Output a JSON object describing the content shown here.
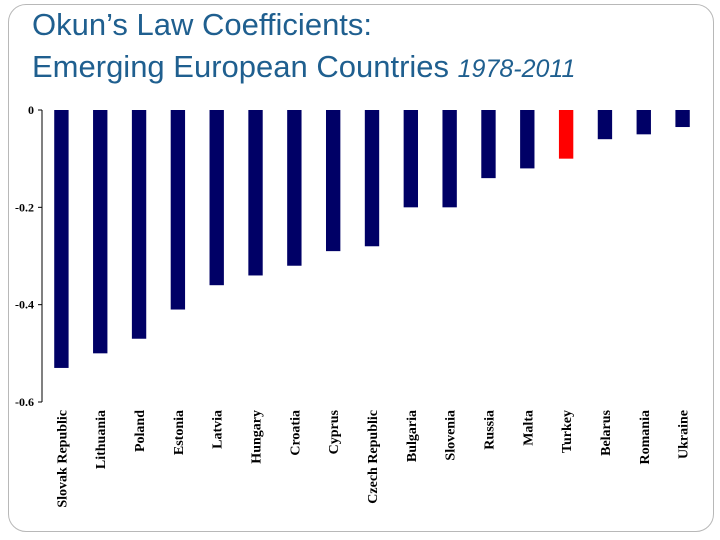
{
  "chart_data": {
    "type": "bar",
    "title": "Okun’s Law Coefficients:",
    "subtitle_main": "Emerging European Countries",
    "subtitle_years": "1978-2011",
    "xlabel": "",
    "ylabel": "",
    "ylim": [
      -0.6,
      0
    ],
    "yticks": [
      "0",
      "-0.2",
      "-0.4",
      "-0.6"
    ],
    "grid": false,
    "legend": "none",
    "categories": [
      "Slovak Republic",
      "Lithuania",
      "Poland",
      "Estonia",
      "Latvia",
      "Hungary",
      "Croatia",
      "Cyprus",
      "Czech Republic",
      "Bulgaria",
      "Slovenia",
      "Russia",
      "Malta",
      "Turkey",
      "Belarus",
      "Romania",
      "Ukraine"
    ],
    "values": [
      -0.53,
      -0.5,
      -0.47,
      -0.41,
      -0.36,
      -0.34,
      -0.32,
      -0.29,
      -0.28,
      -0.2,
      -0.2,
      -0.14,
      -0.12,
      -0.1,
      -0.06,
      -0.05,
      -0.035
    ],
    "bar_color": "#000066",
    "highlight_color": "#ff0000",
    "highlight_category": "Turkey"
  }
}
